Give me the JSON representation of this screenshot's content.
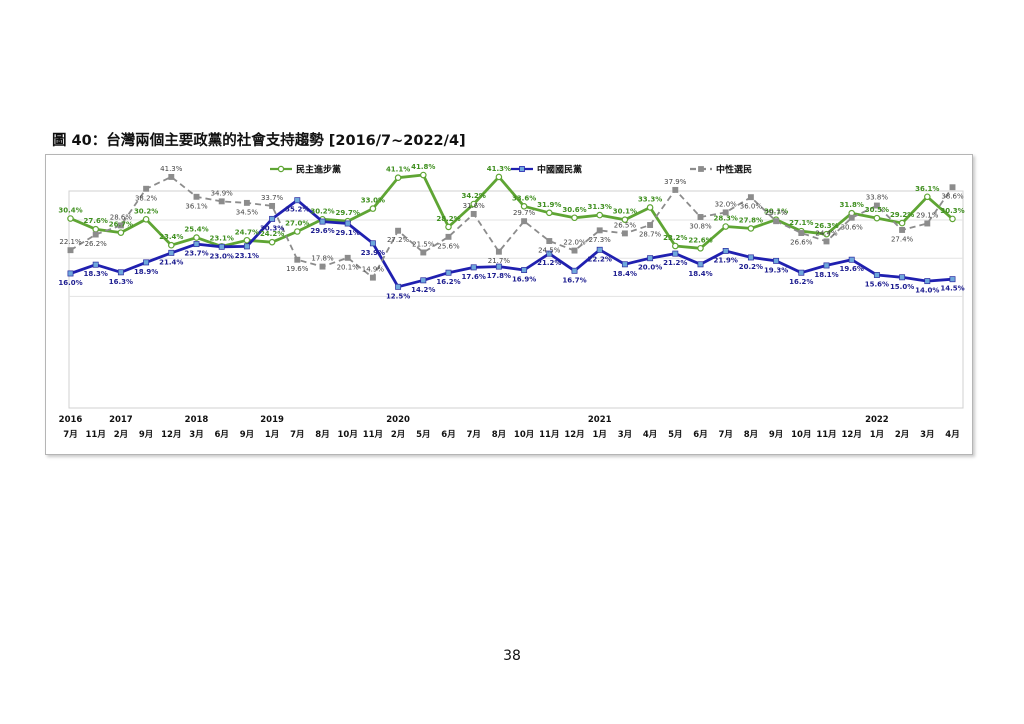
{
  "page": {
    "title": "圖 40：台灣兩個主要政黨的社會支持趨勢 [2016/7~2022/4]",
    "page_number": "38"
  },
  "chart_data": {
    "type": "line",
    "title": "圖 40：台灣兩個主要政黨的社會支持趨勢 [2016/7~2022/4]",
    "legend_position": "top",
    "ylim": [
      0,
      50
    ],
    "grid": true,
    "months": [
      "7月",
      "11月",
      "2月",
      "9月",
      "12月",
      "3月",
      "6月",
      "9月",
      "1月",
      "7月",
      "8月",
      "10月",
      "11月",
      "2月",
      "5月",
      "6月",
      "7月",
      "8月",
      "10月",
      "11月",
      "12月",
      "1月",
      "3月",
      "4月",
      "5月",
      "6月",
      "7月",
      "8月",
      "9月",
      "10月",
      "11月",
      "12月",
      "1月",
      "2月",
      "3月",
      "4月"
    ],
    "years": [
      {
        "label": "2016",
        "index": 0
      },
      {
        "label": "2017",
        "index": 2
      },
      {
        "label": "2018",
        "index": 5
      },
      {
        "label": "2019",
        "index": 8
      },
      {
        "label": "2020",
        "index": 13
      },
      {
        "label": "2021",
        "index": 21
      },
      {
        "label": "2022",
        "index": 32
      }
    ],
    "series": [
      {
        "name": "民主進步黨",
        "color": "#5fa534",
        "dash": "",
        "width": 2.8,
        "marker": "circle",
        "values": [
          30.4,
          27.6,
          26.7,
          30.2,
          23.4,
          25.4,
          23.1,
          24.7,
          24.2,
          27.0,
          30.2,
          29.7,
          33.0,
          41.1,
          41.8,
          28.2,
          34.2,
          41.3,
          33.6,
          31.9,
          30.6,
          31.3,
          30.1,
          33.3,
          23.2,
          22.6,
          28.3,
          27.8,
          30.1,
          27.1,
          26.3,
          31.8,
          30.5,
          29.2,
          36.1,
          30.3
        ]
      },
      {
        "name": "中國國民黨",
        "color": "#2020b0",
        "dash": "",
        "width": 2.8,
        "marker": "square",
        "values": [
          16.0,
          18.3,
          16.3,
          18.9,
          21.4,
          23.7,
          23.0,
          23.1,
          30.3,
          35.2,
          29.6,
          29.1,
          23.9,
          12.5,
          14.2,
          16.2,
          17.6,
          17.8,
          16.9,
          21.2,
          16.7,
          22.2,
          18.4,
          20.0,
          21.2,
          18.4,
          21.9,
          20.2,
          19.3,
          16.2,
          18.1,
          19.6,
          15.6,
          15.0,
          14.0,
          14.5
        ]
      },
      {
        "name": "中性選民",
        "color": "#8c8c8c",
        "dash": "6,4",
        "width": 1.8,
        "marker": "square",
        "values": [
          22.1,
          26.2,
          28.6,
          38.2,
          41.3,
          36.1,
          34.9,
          34.5,
          33.7,
          19.6,
          17.8,
          20.1,
          14.9,
          27.2,
          21.5,
          25.6,
          31.6,
          21.7,
          29.7,
          24.5,
          22.0,
          27.3,
          26.5,
          28.7,
          37.9,
          30.8,
          32.0,
          36.0,
          29.7,
          26.6,
          24.4,
          30.6,
          33.8,
          27.4,
          29.1,
          38.6
        ]
      }
    ]
  }
}
